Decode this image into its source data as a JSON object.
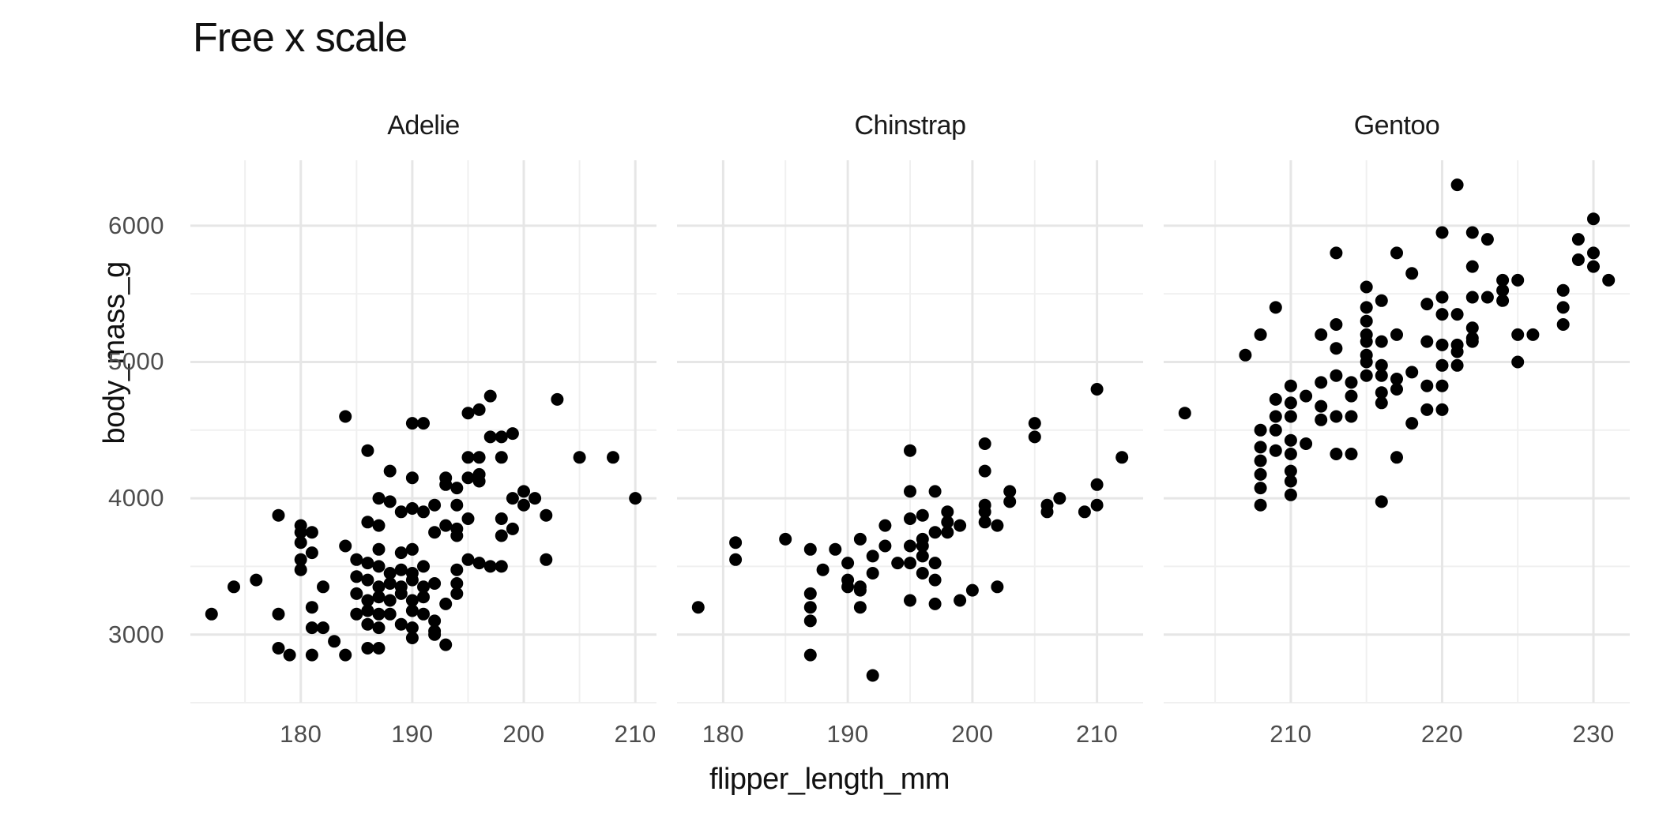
{
  "title": "Free x scale",
  "colors": {
    "background": "#ffffff",
    "point": "#000000",
    "grid_major": "#e6e6e6",
    "grid_minor": "#f0f0f0",
    "tick_label": "#4d4d4d",
    "text": "#111111"
  },
  "chart_data": {
    "type": "scatter",
    "title": "Free x scale",
    "xlabel": "flipper_length_mm",
    "ylabel": "body_mass_g",
    "grid": true,
    "legend": "none",
    "ylim": [
      2500,
      6480
    ],
    "y_major_ticks": [
      3000,
      4000,
      5000,
      6000
    ],
    "y_minor_ticks": [
      2500,
      3500,
      4500,
      5500
    ],
    "facets": [
      {
        "label": "Adelie",
        "xlim": [
          170.1,
          211.9
        ],
        "x_major_ticks": [
          180,
          190,
          200,
          210
        ],
        "x_minor_ticks": [
          175,
          185,
          195,
          205
        ],
        "points": [
          [
            172,
            3150
          ],
          [
            174,
            3350
          ],
          [
            176,
            3400
          ],
          [
            178,
            3150
          ],
          [
            178,
            2900
          ],
          [
            179,
            2850
          ],
          [
            178,
            3875
          ],
          [
            180,
            3800
          ],
          [
            180,
            3750
          ],
          [
            180,
            3675
          ],
          [
            180,
            3550
          ],
          [
            180,
            3475
          ],
          [
            181,
            3750
          ],
          [
            181,
            3600
          ],
          [
            181,
            3200
          ],
          [
            181,
            3050
          ],
          [
            182,
            3050
          ],
          [
            182,
            3350
          ],
          [
            183,
            2950
          ],
          [
            181,
            2850
          ],
          [
            184,
            3650
          ],
          [
            187,
            3625
          ],
          [
            189,
            3600
          ],
          [
            190,
            3625
          ],
          [
            185,
            3550
          ],
          [
            186,
            3525
          ],
          [
            187,
            3500
          ],
          [
            188,
            3450
          ],
          [
            189,
            3475
          ],
          [
            190,
            3450
          ],
          [
            191,
            3500
          ],
          [
            185,
            3425
          ],
          [
            186,
            3400
          ],
          [
            187,
            3350
          ],
          [
            188,
            3375
          ],
          [
            189,
            3350
          ],
          [
            190,
            3400
          ],
          [
            191,
            3350
          ],
          [
            192,
            3375
          ],
          [
            185,
            3300
          ],
          [
            186,
            3250
          ],
          [
            187,
            3275
          ],
          [
            188,
            3250
          ],
          [
            189,
            3300
          ],
          [
            190,
            3250
          ],
          [
            191,
            3275
          ],
          [
            185,
            3150
          ],
          [
            186,
            3175
          ],
          [
            187,
            3150
          ],
          [
            188,
            3150
          ],
          [
            190,
            3175
          ],
          [
            191,
            3150
          ],
          [
            186,
            3075
          ],
          [
            187,
            3050
          ],
          [
            189,
            3075
          ],
          [
            190,
            3050
          ],
          [
            193,
            3225
          ],
          [
            194,
            3475
          ],
          [
            194,
            3375
          ],
          [
            194,
            3300
          ],
          [
            195,
            3550
          ],
          [
            196,
            3525
          ],
          [
            197,
            3500
          ],
          [
            198,
            3500
          ],
          [
            192,
            3100
          ],
          [
            190,
            2975
          ],
          [
            192,
            3025
          ],
          [
            193,
            2925
          ],
          [
            184,
            2850
          ],
          [
            186,
            2900
          ],
          [
            187,
            2900
          ],
          [
            192,
            3000
          ],
          [
            186,
            3825
          ],
          [
            187,
            3800
          ],
          [
            189,
            3900
          ],
          [
            190,
            3925
          ],
          [
            191,
            3900
          ],
          [
            192,
            3750
          ],
          [
            193,
            3800
          ],
          [
            194,
            3775
          ],
          [
            194,
            3725
          ],
          [
            194,
            3950
          ],
          [
            195,
            3850
          ],
          [
            198,
            3850
          ],
          [
            199,
            3775
          ],
          [
            198,
            3725
          ],
          [
            202,
            3875
          ],
          [
            202,
            3550
          ],
          [
            184,
            4600
          ],
          [
            186,
            4350
          ],
          [
            190,
            4550
          ],
          [
            191,
            4550
          ],
          [
            188,
            4200
          ],
          [
            190,
            4150
          ],
          [
            195,
            4625
          ],
          [
            196,
            4650
          ],
          [
            197,
            4750
          ],
          [
            203,
            4725
          ],
          [
            197,
            4450
          ],
          [
            198,
            4450
          ],
          [
            199,
            4475
          ],
          [
            195,
            4300
          ],
          [
            196,
            4300
          ],
          [
            198,
            4300
          ],
          [
            195,
            4150
          ],
          [
            196,
            4125
          ],
          [
            193,
            4150
          ],
          [
            193,
            4100
          ],
          [
            194,
            4075
          ],
          [
            196,
            4175
          ],
          [
            187,
            4000
          ],
          [
            188,
            3975
          ],
          [
            205,
            4300
          ],
          [
            208,
            4300
          ],
          [
            210,
            4000
          ],
          [
            199,
            4000
          ],
          [
            200,
            4050
          ],
          [
            200,
            3950
          ],
          [
            201,
            4000
          ],
          [
            192,
            3950
          ]
        ]
      },
      {
        "label": "Chinstrap",
        "xlim": [
          176.3,
          213.7
        ],
        "x_major_ticks": [
          180,
          190,
          200,
          210
        ],
        "x_minor_ticks": [
          185,
          195,
          205
        ],
        "points": [
          [
            178,
            3200
          ],
          [
            181,
            3675
          ],
          [
            181,
            3550
          ],
          [
            185,
            3700
          ],
          [
            187,
            3625
          ],
          [
            188,
            3475
          ],
          [
            189,
            3625
          ],
          [
            190,
            3525
          ],
          [
            190,
            3400
          ],
          [
            190,
            3350
          ],
          [
            191,
            3700
          ],
          [
            191,
            3350
          ],
          [
            191,
            3325
          ],
          [
            191,
            3200
          ],
          [
            187,
            3300
          ],
          [
            187,
            3200
          ],
          [
            187,
            3100
          ],
          [
            187,
            2850
          ],
          [
            192,
            2700
          ],
          [
            192,
            3575
          ],
          [
            192,
            3450
          ],
          [
            193,
            3650
          ],
          [
            194,
            3525
          ],
          [
            195,
            3650
          ],
          [
            195,
            3525
          ],
          [
            196,
            3700
          ],
          [
            196,
            3650
          ],
          [
            196,
            3575
          ],
          [
            196,
            3450
          ],
          [
            197,
            3525
          ],
          [
            197,
            3400
          ],
          [
            195,
            3250
          ],
          [
            197,
            3225
          ],
          [
            199,
            3250
          ],
          [
            200,
            3325
          ],
          [
            202,
            3350
          ],
          [
            197,
            3750
          ],
          [
            198,
            3750
          ],
          [
            193,
            3800
          ],
          [
            195,
            3850
          ],
          [
            196,
            3875
          ],
          [
            198,
            3900
          ],
          [
            198,
            3825
          ],
          [
            199,
            3800
          ],
          [
            201,
            3900
          ],
          [
            202,
            3800
          ],
          [
            206,
            3900
          ],
          [
            209,
            3900
          ],
          [
            195,
            4350
          ],
          [
            195,
            4050
          ],
          [
            197,
            4050
          ],
          [
            201,
            4400
          ],
          [
            201,
            4200
          ],
          [
            201,
            3950
          ],
          [
            201,
            3825
          ],
          [
            203,
            4050
          ],
          [
            203,
            3975
          ],
          [
            205,
            4550
          ],
          [
            205,
            4450
          ],
          [
            206,
            3950
          ],
          [
            207,
            4000
          ],
          [
            210,
            4800
          ],
          [
            210,
            4100
          ],
          [
            210,
            3950
          ],
          [
            212,
            4300
          ]
        ]
      },
      {
        "label": "Gentoo",
        "xlim": [
          201.6,
          232.4
        ],
        "x_major_ticks": [
          210,
          220,
          230
        ],
        "x_minor_ticks": [
          205,
          215,
          225
        ],
        "points": [
          [
            203,
            4625
          ],
          [
            207,
            5050
          ],
          [
            208,
            5200
          ],
          [
            209,
            5400
          ],
          [
            213,
            5800
          ],
          [
            217,
            5800
          ],
          [
            218,
            5650
          ],
          [
            220,
            5950
          ],
          [
            221,
            6300
          ],
          [
            222,
            5950
          ],
          [
            223,
            5900
          ],
          [
            222,
            5700
          ],
          [
            229,
            5900
          ],
          [
            229,
            5750
          ],
          [
            230,
            6050
          ],
          [
            230,
            5800
          ],
          [
            230,
            5700
          ],
          [
            231,
            5600
          ],
          [
            213,
            5275
          ],
          [
            215,
            5550
          ],
          [
            215,
            5400
          ],
          [
            215,
            5300
          ],
          [
            215,
            5200
          ],
          [
            215,
            5150
          ],
          [
            215,
            5050
          ],
          [
            215,
            5000
          ],
          [
            215,
            4900
          ],
          [
            216,
            5450
          ],
          [
            216,
            5150
          ],
          [
            217,
            5200
          ],
          [
            219,
            5425
          ],
          [
            220,
            5475
          ],
          [
            220,
            5350
          ],
          [
            221,
            5350
          ],
          [
            222,
            5175
          ],
          [
            222,
            5475
          ],
          [
            223,
            5475
          ],
          [
            224,
            5600
          ],
          [
            225,
            5600
          ],
          [
            224,
            5525
          ],
          [
            224,
            5450
          ],
          [
            228,
            5525
          ],
          [
            228,
            5400
          ],
          [
            228,
            5275
          ],
          [
            219,
            5150
          ],
          [
            221,
            5125
          ],
          [
            222,
            5150
          ],
          [
            225,
            5200
          ],
          [
            226,
            5200
          ],
          [
            225,
            5000
          ],
          [
            212,
            5200
          ],
          [
            213,
            5100
          ],
          [
            213,
            4900
          ],
          [
            208,
            4500
          ],
          [
            208,
            4375
          ],
          [
            208,
            4275
          ],
          [
            208,
            4175
          ],
          [
            208,
            4075
          ],
          [
            208,
            3950
          ],
          [
            209,
            4725
          ],
          [
            209,
            4600
          ],
          [
            209,
            4500
          ],
          [
            209,
            4350
          ],
          [
            210,
            4825
          ],
          [
            210,
            4700
          ],
          [
            210,
            4600
          ],
          [
            210,
            4425
          ],
          [
            210,
            4325
          ],
          [
            210,
            4200
          ],
          [
            210,
            4125
          ],
          [
            210,
            4025
          ],
          [
            211,
            4750
          ],
          [
            211,
            4400
          ],
          [
            212,
            4850
          ],
          [
            212,
            4675
          ],
          [
            212,
            4575
          ],
          [
            213,
            4600
          ],
          [
            214,
            4600
          ],
          [
            214,
            4850
          ],
          [
            214,
            4750
          ],
          [
            216,
            4975
          ],
          [
            216,
            4900
          ],
          [
            216,
            4775
          ],
          [
            216,
            4700
          ],
          [
            217,
            4875
          ],
          [
            217,
            4800
          ],
          [
            218,
            4925
          ],
          [
            218,
            4550
          ],
          [
            219,
            4825
          ],
          [
            219,
            4650
          ],
          [
            220,
            4650
          ],
          [
            220,
            4825
          ],
          [
            213,
            4325
          ],
          [
            214,
            4325
          ],
          [
            217,
            4300
          ],
          [
            216,
            3975
          ],
          [
            220,
            5125
          ],
          [
            220,
            4975
          ],
          [
            221,
            5075
          ],
          [
            221,
            4975
          ],
          [
            222,
            5250
          ]
        ]
      }
    ]
  }
}
